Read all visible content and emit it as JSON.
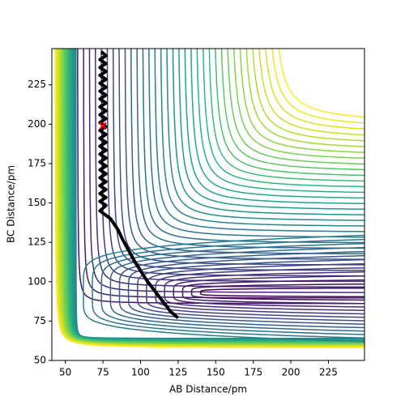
{
  "chart_data": {
    "type": "contour",
    "xlabel": "AB Distance/pm",
    "ylabel": "BC Distance/pm",
    "xlim": [
      41,
      249
    ],
    "ylim": [
      50,
      248
    ],
    "xticks": [
      50,
      75,
      100,
      125,
      150,
      175,
      200,
      225
    ],
    "yticks": [
      50,
      75,
      100,
      125,
      150,
      175,
      200,
      225
    ],
    "series": [
      {
        "color": "#000000",
        "x": [
          74,
          77,
          73,
          77,
          73,
          77,
          73,
          77,
          73,
          77,
          73,
          77,
          73,
          77,
          73,
          77,
          73,
          77,
          73,
          77,
          73,
          77,
          73,
          77,
          73,
          77,
          73,
          77,
          73,
          77,
          73,
          77,
          73,
          77,
          73,
          77,
          73,
          77,
          73,
          77,
          73,
          80,
          85,
          88,
          92,
          96,
          100,
          104,
          108,
          112,
          116,
          120,
          125
        ],
        "y": [
          246,
          243.5,
          241,
          238.5,
          236,
          233.5,
          231,
          228.5,
          226,
          223.5,
          221,
          218.5,
          216,
          213.5,
          211,
          208.5,
          206,
          203.5,
          201,
          198.5,
          196,
          193.5,
          191,
          188.5,
          186,
          183.5,
          181,
          178.5,
          176,
          173.5,
          171,
          168.5,
          166,
          163.5,
          161,
          158.5,
          156,
          153.5,
          151,
          148.5,
          145,
          140,
          133,
          127,
          120,
          113,
          107,
          101,
          96,
          91,
          86,
          81,
          77
        ]
      },
      {
        "color": "#ff0000",
        "x": [
          75
        ],
        "y": [
          199
        ]
      }
    ]
  }
}
